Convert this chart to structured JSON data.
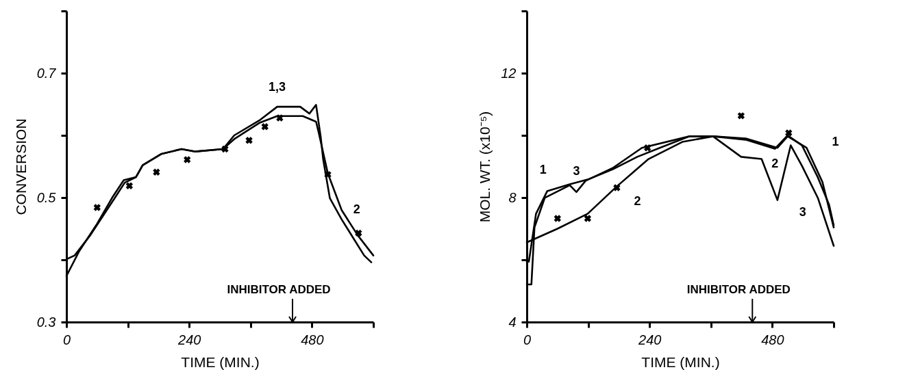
{
  "chart_data": [
    {
      "type": "line",
      "xlabel": "TIME (MIN.)",
      "ylabel": "CONVERSION",
      "xlim": [
        0,
        600
      ],
      "ylim": [
        0.3,
        0.8
      ],
      "xticks": [
        0,
        {
          "value": 120,
          "label": null
        },
        240,
        {
          "value": 360,
          "label": null
        },
        480,
        {
          "value": 600,
          "label": null
        }
      ],
      "yticks": [
        0.3,
        {
          "value": 0.4,
          "label": null
        },
        0.5,
        {
          "value": 0.6,
          "label": null
        },
        0.7,
        {
          "value": 0.8,
          "label": null
        }
      ],
      "grid": false,
      "legend": false,
      "marker": "none",
      "line_style": "solid",
      "series": [
        {
          "name": "1,3",
          "color": "#000000",
          "x": [
            0,
            25,
            60,
            91,
            112,
            136,
            149,
            185,
            225,
            252,
            306,
            328,
            377,
            412,
            457,
            475,
            488,
            497,
            502,
            515,
            538,
            560,
            582,
            596
          ],
          "values": [
            0.374,
            0.414,
            0.458,
            0.502,
            0.528,
            0.533,
            0.552,
            0.57,
            0.578,
            0.574,
            0.578,
            0.6,
            0.624,
            0.646,
            0.646,
            0.635,
            0.649,
            0.598,
            0.561,
            0.499,
            0.465,
            0.436,
            0.407,
            0.396
          ]
        },
        {
          "name": "2",
          "color": "#000000",
          "x": [
            0,
            16,
            47,
            91,
            114,
            136,
            149,
            185,
            225,
            252,
            306,
            328,
            377,
            412,
            462,
            488,
            493,
            511,
            538,
            569,
            600
          ],
          "values": [
            0.401,
            0.407,
            0.44,
            0.495,
            0.524,
            0.533,
            0.552,
            0.57,
            0.578,
            0.574,
            0.578,
            0.594,
            0.62,
            0.631,
            0.631,
            0.622,
            0.605,
            0.539,
            0.48,
            0.44,
            0.407
          ]
        },
        {
          "type": "scatter",
          "marker": "cross",
          "color": "#000000",
          "x": [
            60,
            123,
            176,
            236,
            310,
            357,
            388,
            417,
            511,
            571
          ],
          "values": [
            0.484,
            0.519,
            0.541,
            0.561,
            0.578,
            0.592,
            0.614,
            0.628,
            0.537,
            0.443
          ]
        }
      ],
      "ref_lines": [
        {
          "axis": "x",
          "value": 442,
          "label": "INHIBITOR ADDED"
        }
      ]
    },
    {
      "type": "line",
      "xlabel": "TIME (MIN.)",
      "ylabel": "MOL. WT. (x10⁻⁵)",
      "xlim": [
        0,
        600
      ],
      "ylim": [
        4,
        14
      ],
      "xticks": [
        0,
        {
          "value": 120,
          "label": null
        },
        240,
        {
          "value": 360,
          "label": null
        },
        480,
        {
          "value": 600,
          "label": null
        }
      ],
      "yticks": [
        4,
        {
          "value": 6,
          "label": null
        },
        8,
        {
          "value": 10,
          "label": null
        },
        12,
        {
          "value": 14,
          "label": null
        }
      ],
      "grid": false,
      "legend": false,
      "marker": "none",
      "line_style": "solid",
      "series": [
        {
          "name": "1",
          "color": "#000000",
          "x": [
            0,
            4,
            18,
            40,
            84,
            119,
            168,
            216,
            260,
            318,
            364,
            428,
            490,
            510,
            547,
            578,
            600
          ],
          "values": [
            5.94,
            5.94,
            7.48,
            8.21,
            8.43,
            8.58,
            8.91,
            9.31,
            9.6,
            9.97,
            9.97,
            9.9,
            9.6,
            9.97,
            9.6,
            8.5,
            7.04
          ]
        },
        {
          "name": "2",
          "color": "#000000",
          "x": [
            0,
            60,
            119,
            176,
            238,
            304,
            364,
            428,
            485,
            510,
            538,
            569,
            591,
            600
          ],
          "values": [
            6.56,
            7.0,
            7.48,
            8.36,
            9.24,
            9.79,
            9.97,
            9.86,
            9.57,
            10.0,
            9.68,
            8.65,
            7.77,
            7.11
          ]
        },
        {
          "name": "3",
          "color": "#000000",
          "x": [
            0,
            9,
            15,
            35,
            84,
            97,
            115,
            168,
            225,
            318,
            364,
            419,
            459,
            490,
            516,
            538,
            569,
            600
          ],
          "values": [
            5.21,
            5.21,
            7.04,
            7.99,
            8.4,
            8.18,
            8.54,
            8.95,
            9.6,
            9.97,
            9.97,
            9.31,
            9.24,
            7.92,
            9.68,
            9.02,
            7.99,
            6.45
          ]
        },
        {
          "type": "scatter",
          "marker": "cross",
          "color": "#000000",
          "x": [
            60,
            119,
            176,
            236,
            419,
            512
          ],
          "values": [
            7.33,
            7.33,
            8.32,
            9.6,
            10.63,
            10.08
          ]
        }
      ],
      "ref_lines": [
        {
          "axis": "x",
          "value": 441,
          "label": "INHIBITOR ADDED"
        }
      ]
    }
  ]
}
